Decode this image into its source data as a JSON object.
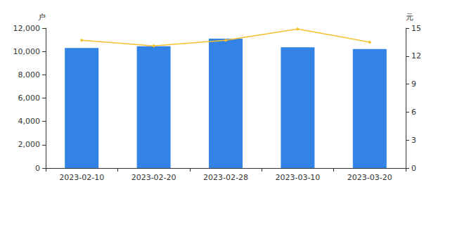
{
  "chart_data": {
    "type": "bar",
    "categories": [
      "2023-02-10",
      "2023-02-20",
      "2023-02-28",
      "2023-03-10",
      "2023-03-20"
    ],
    "series": [
      {
        "type": "bar",
        "color": "#3283e5",
        "values": [
          10300,
          10450,
          11100,
          10350,
          10200
        ]
      },
      {
        "type": "line",
        "color": "#f5c02c",
        "marker": "circle",
        "axis": "y2",
        "values": [
          13.7,
          13.1,
          13.7,
          14.9,
          13.5
        ]
      }
    ],
    "y_label": "户",
    "y2_label": "元",
    "ylim": [
      0,
      12000
    ],
    "yticks": [
      0,
      {
        "value": 2000,
        "label": "2,000"
      },
      {
        "value": 4000,
        "label": "4,000"
      },
      {
        "value": 6000,
        "label": "6,000"
      },
      {
        "value": 8000,
        "label": "8,000"
      },
      {
        "value": 10000,
        "label": "10,000"
      },
      {
        "value": 12000,
        "label": "12,000"
      }
    ],
    "y2lim": [
      0,
      15
    ],
    "y2ticks": [
      0,
      3,
      6,
      9,
      12,
      15
    ],
    "grid": false
  }
}
